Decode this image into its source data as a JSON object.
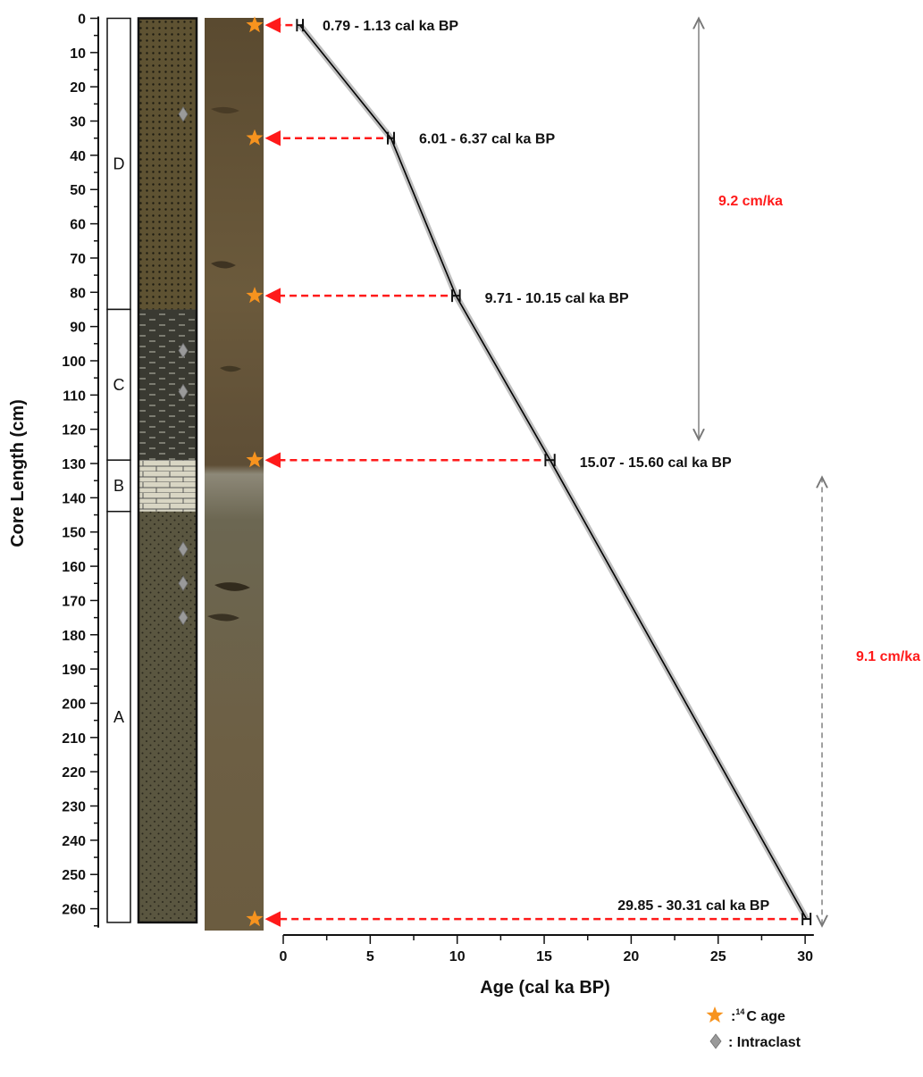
{
  "chart_data": {
    "type": "line",
    "xlabel": "Age (cal ka BP)",
    "ylabel": "Core Length (cm)",
    "xlim": [
      0,
      30
    ],
    "ylim": [
      0,
      265
    ],
    "x_ticks": [
      0,
      5,
      10,
      15,
      20,
      25,
      30
    ],
    "y_ticks": [
      0,
      10,
      20,
      30,
      40,
      50,
      60,
      70,
      80,
      90,
      100,
      110,
      120,
      130,
      140,
      150,
      160,
      170,
      180,
      190,
      200,
      210,
      220,
      230,
      240,
      250,
      260
    ],
    "y_inverted": true,
    "series": [
      {
        "points": [
          {
            "x": 0.96,
            "y": 2
          },
          {
            "x": 6.19,
            "y": 35
          },
          {
            "x": 9.93,
            "y": 81
          },
          {
            "x": 15.34,
            "y": 129
          },
          {
            "x": 30.08,
            "y": 263
          }
        ]
      }
    ],
    "dates": [
      {
        "depth": 2,
        "min": 0.79,
        "max": 1.13,
        "label": "0.79 - 1.13 cal ka BP"
      },
      {
        "depth": 35,
        "min": 6.01,
        "max": 6.37,
        "label": "6.01 - 6.37 cal ka BP"
      },
      {
        "depth": 81,
        "min": 9.71,
        "max": 10.15,
        "label": "9.71 - 10.15 cal ka BP"
      },
      {
        "depth": 129,
        "min": 15.07,
        "max": 15.6,
        "label": "15.07 - 15.60 cal ka BP"
      },
      {
        "depth": 263,
        "min": 29.85,
        "max": 30.31,
        "label": "29.85 - 30.31 cal ka BP"
      }
    ],
    "units": [
      {
        "name": "D",
        "top": 0,
        "bottom": 85,
        "lithology": "dotted"
      },
      {
        "name": "C",
        "top": 85,
        "bottom": 129,
        "lithology": "dashed"
      },
      {
        "name": "B",
        "top": 129,
        "bottom": 144,
        "lithology": "brick"
      },
      {
        "name": "A",
        "top": 144,
        "bottom": 264,
        "lithology": "dotted"
      }
    ],
    "intraclast_depths": [
      28,
      97,
      109,
      155,
      165,
      175
    ],
    "rates": [
      {
        "label": "9.2 cm/ka",
        "from_depth": 0,
        "to_depth": 123
      },
      {
        "label": "9.1 cm/ka",
        "from_depth": 134,
        "to_depth": 265
      }
    ],
    "legend": [
      {
        "symbol": "star",
        "label": ":",
        "sup": "14",
        "label_after": "C age"
      },
      {
        "symbol": "diamond",
        "label": ": Intraclast"
      }
    ],
    "colors": {
      "star": "#f7931e",
      "arrow": "#ff1a1a",
      "rate_text": "#ff1a1a",
      "diamond": "#9a9a9a",
      "curve": "#000000",
      "curve_band": "#bfbfbf"
    }
  }
}
